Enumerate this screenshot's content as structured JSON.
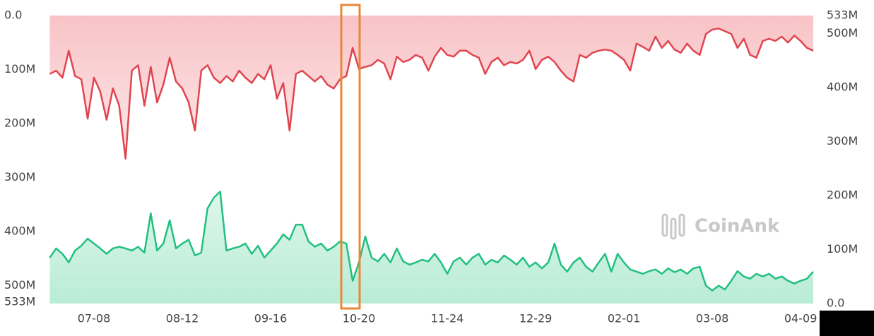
{
  "chart_data": {
    "type": "area",
    "watermark": "CoinAnk",
    "categories": [
      null,
      null,
      null,
      null,
      null,
      null,
      null,
      "07-08",
      null,
      null,
      null,
      null,
      null,
      null,
      null,
      null,
      null,
      null,
      null,
      null,
      null,
      "08-12",
      null,
      null,
      null,
      null,
      null,
      null,
      null,
      null,
      null,
      null,
      null,
      null,
      null,
      "09-16",
      null,
      null,
      null,
      null,
      null,
      null,
      null,
      null,
      null,
      null,
      null,
      null,
      null,
      "10-20",
      null,
      null,
      null,
      null,
      null,
      null,
      null,
      null,
      null,
      null,
      null,
      null,
      null,
      "11-24",
      null,
      null,
      null,
      null,
      null,
      null,
      null,
      null,
      null,
      null,
      null,
      null,
      null,
      "12-29",
      null,
      null,
      null,
      null,
      null,
      null,
      null,
      null,
      null,
      null,
      null,
      null,
      null,
      "02-01",
      null,
      null,
      null,
      null,
      null,
      null,
      null,
      null,
      null,
      null,
      null,
      null,
      null,
      "03-08",
      null,
      null,
      null,
      null,
      null,
      null,
      null,
      null,
      null,
      null,
      null,
      null,
      null,
      "04-09",
      null,
      null
    ],
    "ylim": [
      0,
      533000000
    ],
    "y_inverted": true,
    "yticks": [
      {
        "value": 0,
        "label": "0.0"
      },
      {
        "value": 100000000,
        "label": "100M"
      },
      {
        "value": 200000000,
        "label": "200M"
      },
      {
        "value": 300000000,
        "label": "300M"
      },
      {
        "value": 400000000,
        "label": "400M"
      },
      {
        "value": 500000000,
        "label": "500M"
      },
      {
        "value": 533000000,
        "label": "533M"
      }
    ],
    "y2lim": [
      0,
      533000000
    ],
    "y2ticks": [
      {
        "value": 0,
        "label": "0.0"
      },
      {
        "value": 100000000,
        "label": "100M"
      },
      {
        "value": 200000000,
        "label": "200M"
      },
      {
        "value": 300000000,
        "label": "300M"
      },
      {
        "value": 400000000,
        "label": "400M"
      },
      {
        "value": 500000000,
        "label": "500M"
      },
      {
        "value": 533000000,
        "label": "533M"
      }
    ],
    "series": [
      {
        "color": "#e0454f",
        "fill": "#f8c3c6",
        "axis": "y",
        "values": [
          108000000.0,
          102000000.0,
          115000000.0,
          65000000.0,
          112000000.0,
          118000000.0,
          191000000.0,
          115000000.0,
          141000000.0,
          193000000.0,
          135000000.0,
          167000000.0,
          265000000.0,
          102000000.0,
          92000000.0,
          167000000.0,
          95000000.0,
          161000000.0,
          128000000.0,
          78000000.0,
          122000000.0,
          135000000.0,
          161000000.0,
          213000000.0,
          102000000.0,
          92000000.0,
          115000000.0,
          125000000.0,
          112000000.0,
          122000000.0,
          102000000.0,
          115000000.0,
          125000000.0,
          108000000.0,
          118000000.0,
          92000000.0,
          154000000.0,
          125000000.0,
          213000000.0,
          108000000.0,
          102000000.0,
          112000000.0,
          122000000.0,
          112000000.0,
          128000000.0,
          135000000.0,
          118000000.0,
          112000000.0,
          60000000.0,
          99000000.0,
          95000000.0,
          92000000.0,
          82000000.0,
          89000000.0,
          118000000.0,
          76000000.0,
          86000000.0,
          82000000.0,
          73000000.0,
          78000000.0,
          102000000.0,
          76000000.0,
          60000000.0,
          73000000.0,
          76000000.0,
          65000000.0,
          65000000.0,
          73000000.0,
          78000000.0,
          108000000.0,
          86000000.0,
          78000000.0,
          92000000.0,
          86000000.0,
          89000000.0,
          82000000.0,
          65000000.0,
          99000000.0,
          82000000.0,
          76000000.0,
          86000000.0,
          102000000.0,
          115000000.0,
          122000000.0,
          73000000.0,
          78000000.0,
          69000000.0,
          65000000.0,
          63000000.0,
          65000000.0,
          73000000.0,
          82000000.0,
          102000000.0,
          52000000.0,
          58000000.0,
          65000000.0,
          39000000.0,
          60000000.0,
          47000000.0,
          63000000.0,
          69000000.0,
          52000000.0,
          65000000.0,
          73000000.0,
          34000000.0,
          26000000.0,
          24000000.0,
          29000000.0,
          34000000.0,
          60000000.0,
          43000000.0,
          73000000.0,
          78000000.0,
          47000000.0,
          43000000.0,
          47000000.0,
          39000000.0,
          50000000.0,
          37000000.0,
          47000000.0,
          60000000.0,
          65000000.0
        ]
      },
      {
        "color": "#21c07f",
        "fill": "#b9ecd6",
        "axis": "y2",
        "values": [
          85000000.0,
          102000000.0,
          92000000.0,
          76000000.0,
          98000000.0,
          107000000.0,
          120000000.0,
          111000000.0,
          102000000.0,
          92000000.0,
          102000000.0,
          105000000.0,
          102000000.0,
          98000000.0,
          105000000.0,
          94000000.0,
          167000000.0,
          98000000.0,
          111000000.0,
          154000000.0,
          102000000.0,
          111000000.0,
          118000000.0,
          89000000.0,
          94000000.0,
          176000000.0,
          196000000.0,
          207000000.0,
          98000000.0,
          102000000.0,
          105000000.0,
          111000000.0,
          92000000.0,
          107000000.0,
          85000000.0,
          98000000.0,
          111000000.0,
          128000000.0,
          118000000.0,
          146000000.0,
          146000000.0,
          115000000.0,
          105000000.0,
          111000000.0,
          98000000.0,
          105000000.0,
          115000000.0,
          111000000.0,
          42000000.0,
          76000000.0,
          124000000.0,
          85000000.0,
          78000000.0,
          92000000.0,
          76000000.0,
          102000000.0,
          78000000.0,
          72000000.0,
          76000000.0,
          81000000.0,
          78000000.0,
          92000000.0,
          76000000.0,
          55000000.0,
          78000000.0,
          85000000.0,
          72000000.0,
          85000000.0,
          92000000.0,
          72000000.0,
          81000000.0,
          76000000.0,
          89000000.0,
          81000000.0,
          72000000.0,
          85000000.0,
          68000000.0,
          76000000.0,
          65000000.0,
          76000000.0,
          111000000.0,
          72000000.0,
          59000000.0,
          76000000.0,
          85000000.0,
          68000000.0,
          59000000.0,
          76000000.0,
          92000000.0,
          59000000.0,
          92000000.0,
          76000000.0,
          63000000.0,
          59000000.0,
          55000000.0,
          60000000.0,
          63000000.0,
          55000000.0,
          65000000.0,
          58000000.0,
          63000000.0,
          55000000.0,
          65000000.0,
          68000000.0,
          33000000.0,
          24000000.0,
          33000000.0,
          26000000.0,
          42000000.0,
          60000000.0,
          50000000.0,
          46000000.0,
          55000000.0,
          50000000.0,
          55000000.0,
          46000000.0,
          50000000.0,
          42000000.0,
          37000000.0,
          42000000.0,
          46000000.0,
          59000000.0
        ]
      }
    ]
  }
}
